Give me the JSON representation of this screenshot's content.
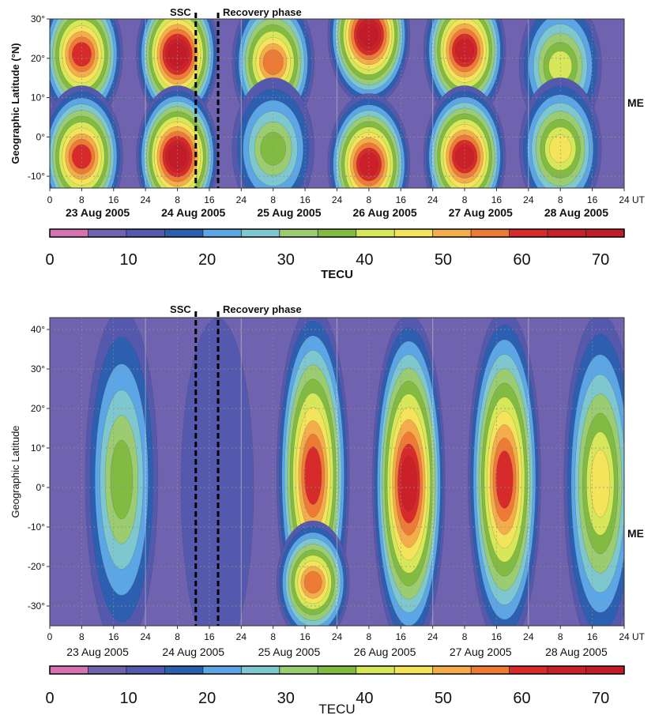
{
  "chart_data": [
    {
      "type": "heatmap",
      "panel": "top",
      "ylabel": "Geographic Latitude (°N)",
      "ylim": [
        -13,
        30
      ],
      "y_ticks": [
        -10,
        0,
        10,
        20,
        30
      ],
      "y_tick_labels": [
        "-10°",
        "0°",
        "10°",
        "20°",
        "30°"
      ],
      "x_tick_labels": [
        "0",
        "8",
        "16",
        "24",
        "8",
        "16",
        "24",
        "8",
        "16",
        "24",
        "8",
        "16",
        "24",
        "8",
        "16",
        "24",
        "8",
        "16",
        "24"
      ],
      "x_unit": "UT",
      "day_labels": [
        "23 Aug 2005",
        "24 Aug 2005",
        "25 Aug 2005",
        "26 Aug 2005",
        "27 Aug 2005",
        "28 Aug 2005"
      ],
      "markers": [
        {
          "label": "SSC",
          "x_hours": 36.6
        },
        {
          "label": "Recovery phase",
          "x_hours": 42.2
        }
      ],
      "side_label": "ME",
      "colorbar": {
        "ticks": [
          0,
          10,
          20,
          30,
          40,
          50,
          60,
          70
        ],
        "label": "TECU",
        "max": 73
      },
      "days": [
        {
          "blobs": [
            {
              "lat": 21,
              "peak": 62
            },
            {
              "lat": -5,
              "peak": 62
            }
          ],
          "peak_hour": 8
        },
        {
          "blobs": [
            {
              "lat": 21,
              "peak": 70
            },
            {
              "lat": -5,
              "peak": 70
            }
          ],
          "peak_hour": 8
        },
        {
          "blobs": [
            {
              "lat": 19,
              "peak": 55
            },
            {
              "lat": -3,
              "peak": 38
            }
          ],
          "peak_hour": 8
        },
        {
          "blobs": [
            {
              "lat": 26,
              "peak": 70
            },
            {
              "lat": -7,
              "peak": 68
            }
          ],
          "peak_hour": 8
        },
        {
          "blobs": [
            {
              "lat": 22,
              "peak": 65
            },
            {
              "lat": -5,
              "peak": 65
            }
          ],
          "peak_hour": 8
        },
        {
          "blobs": [
            {
              "lat": 18,
              "peak": 43
            },
            {
              "lat": -3,
              "peak": 48
            }
          ],
          "peak_hour": 8
        }
      ]
    },
    {
      "type": "heatmap",
      "panel": "bottom",
      "ylabel": "Geographic Latitude",
      "ylim": [
        -35,
        43
      ],
      "y_ticks": [
        -30,
        -20,
        -10,
        0,
        10,
        20,
        30,
        40
      ],
      "y_tick_labels": [
        "-30°",
        "-20°",
        "-10°",
        "0°",
        "10°",
        "20°",
        "30°",
        "40°"
      ],
      "x_tick_labels": [
        "0",
        "8",
        "16",
        "24",
        "8",
        "16",
        "24",
        "8",
        "16",
        "24",
        "8",
        "16",
        "24",
        "8",
        "16",
        "24",
        "8",
        "16",
        "24"
      ],
      "x_unit": "UT",
      "day_labels": [
        "23 Aug 2005",
        "24 Aug 2005",
        "25 Aug 2005",
        "26 Aug 2005",
        "27 Aug 2005",
        "28 Aug 2005"
      ],
      "markers": [
        {
          "label": "SSC",
          "x_hours": 36.6
        },
        {
          "label": "Recovery phase",
          "x_hours": 42.2
        }
      ],
      "side_label": "ME",
      "colorbar": {
        "ticks": [
          0,
          10,
          20,
          30,
          40,
          50,
          60,
          70
        ],
        "label": "TECU",
        "max": 73
      },
      "days": [
        {
          "blobs": [
            {
              "lat": 2,
              "peak": 35
            }
          ],
          "peak_hour": 18
        },
        {
          "blobs": [
            {
              "lat": 0,
              "peak": 14
            }
          ],
          "peak_hour": 18
        },
        {
          "blobs": [
            {
              "lat": 3,
              "peak": 60
            },
            {
              "lat": -24,
              "peak": 55
            }
          ],
          "peak_hour": 18
        },
        {
          "blobs": [
            {
              "lat": 1,
              "peak": 65
            }
          ],
          "peak_hour": 18
        },
        {
          "blobs": [
            {
              "lat": 2,
              "peak": 60
            }
          ],
          "peak_hour": 18
        },
        {
          "blobs": [
            {
              "lat": 1,
              "peak": 48
            }
          ],
          "peak_hour": 18
        }
      ]
    }
  ],
  "colors": {
    "bands": [
      "#d572b2",
      "#6f63b0",
      "#5559ad",
      "#2d5fb0",
      "#5ca6e6",
      "#7fc7cf",
      "#9ccc72",
      "#82bb42",
      "#d6e85a",
      "#f3e45b",
      "#f4ad4b",
      "#ee7b35",
      "#d72b2b",
      "#c9202a",
      "#c11c28"
    ],
    "background": "#6f63b0",
    "grid": "#8f8f8f"
  }
}
